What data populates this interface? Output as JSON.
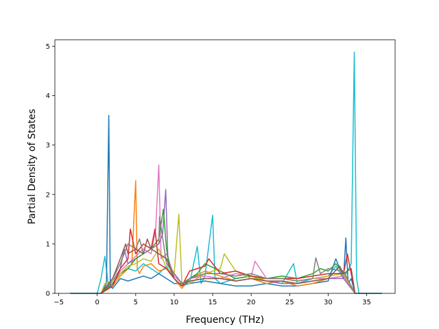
{
  "chart_data": {
    "type": "line",
    "title": "",
    "xlabel": "Frequency (THz)",
    "ylabel": "Partial Density of States",
    "xlim": [
      -5.5,
      38.7
    ],
    "ylim": [
      0,
      5.13
    ],
    "xticks": [
      -5,
      0,
      5,
      10,
      15,
      20,
      25,
      30,
      35
    ],
    "yticks": [
      0,
      1,
      2,
      3,
      4,
      5
    ],
    "grid": false,
    "legend": "none",
    "series_colors": [
      "#1f77b4",
      "#ff7f0e",
      "#2ca02c",
      "#d62728",
      "#9467bd",
      "#8c564b",
      "#e377c2",
      "#7f7f7f",
      "#bcbd22",
      "#17becf"
    ],
    "series": [
      {
        "color": "#17becf",
        "x": [
          -3.5,
          0.0,
          0.5,
          1.0,
          1.5,
          2.0,
          3.0,
          4.0,
          5.0,
          6.0,
          7.0,
          8.0,
          9.0,
          10.0,
          11.0,
          12.0,
          13.0,
          13.5,
          14.0,
          15.0,
          15.3,
          16.0,
          18.0,
          20.0,
          22.0,
          24.0,
          25.5,
          26.0,
          28.0,
          30.0,
          31.0,
          32.0,
          33.0,
          33.4,
          33.7,
          34.0,
          37.0
        ],
        "y": [
          0,
          0,
          0.3,
          0.75,
          0.1,
          0.2,
          0.4,
          0.5,
          0.45,
          0.6,
          0.5,
          0.4,
          0.55,
          0.3,
          0.15,
          0.2,
          0.95,
          0.2,
          0.35,
          1.58,
          0.3,
          0.2,
          0.3,
          0.35,
          0.25,
          0.2,
          0.6,
          0.2,
          0.3,
          0.35,
          0.55,
          0.3,
          0.6,
          4.88,
          0.3,
          0,
          0
        ]
      },
      {
        "color": "#1f77b4",
        "x": [
          -3.5,
          0.5,
          1.2,
          1.5,
          1.7,
          2.0,
          3.0,
          4.0,
          5.0,
          6.0,
          7.0,
          8.0,
          9.0,
          10.0,
          12.0,
          14.0,
          16.0,
          18.0,
          20.0,
          22.0,
          24.0,
          26.0,
          28.0,
          30.0,
          31.0,
          32.0,
          32.3,
          32.6,
          33.0,
          33.5,
          37.0
        ],
        "y": [
          0,
          0,
          0.2,
          3.6,
          0.15,
          0.1,
          0.3,
          0.25,
          0.3,
          0.35,
          0.3,
          0.4,
          0.3,
          0.2,
          0.2,
          0.25,
          0.2,
          0.15,
          0.15,
          0.2,
          0.15,
          0.15,
          0.2,
          0.25,
          0.7,
          0.3,
          1.12,
          0.2,
          0.3,
          0,
          0
        ]
      },
      {
        "color": "#ff7f0e",
        "x": [
          0.5,
          2.0,
          3.0,
          4.0,
          4.5,
          5.0,
          5.2,
          5.5,
          6.0,
          7.0,
          8.0,
          9.0,
          10.0,
          11.0,
          12.0,
          14.0,
          16.0,
          18.0,
          20.0,
          22.0,
          24.0,
          26.0,
          28.0,
          30.0,
          32.0,
          33.5
        ],
        "y": [
          0,
          0.15,
          0.35,
          0.5,
          0.6,
          2.28,
          0.5,
          0.4,
          0.55,
          0.6,
          0.45,
          0.5,
          0.3,
          0.1,
          0.3,
          0.45,
          0.35,
          0.25,
          0.3,
          0.2,
          0.25,
          0.15,
          0.2,
          0.3,
          0.35,
          0
        ]
      },
      {
        "color": "#e377c2",
        "x": [
          0.5,
          2.0,
          3.0,
          4.0,
          5.0,
          6.0,
          7.0,
          7.6,
          8.0,
          8.3,
          9.0,
          10.0,
          11.0,
          12.0,
          14.0,
          16.0,
          18.0,
          20.0,
          20.5,
          22.0,
          24.0,
          26.0,
          28.0,
          30.0,
          32.0,
          33.5
        ],
        "y": [
          0,
          0.2,
          0.45,
          0.6,
          0.75,
          0.9,
          0.8,
          1.3,
          2.6,
          0.7,
          0.8,
          0.35,
          0.2,
          0.3,
          0.35,
          0.3,
          0.4,
          0.35,
          0.65,
          0.3,
          0.3,
          0.25,
          0.3,
          0.3,
          0.35,
          0
        ]
      },
      {
        "color": "#9467bd",
        "x": [
          0.5,
          2.0,
          3.0,
          3.5,
          4.0,
          5.0,
          6.0,
          7.0,
          8.0,
          8.5,
          8.9,
          9.2,
          10.0,
          11.0,
          12.0,
          14.0,
          16.0,
          18.0,
          20.0,
          22.0,
          24.0,
          26.0,
          28.0,
          30.0,
          32.0,
          33.5
        ],
        "y": [
          0,
          0.25,
          0.5,
          0.9,
          0.6,
          0.7,
          0.8,
          0.9,
          1.0,
          1.2,
          2.1,
          0.6,
          0.4,
          0.2,
          0.25,
          0.3,
          0.3,
          0.25,
          0.3,
          0.25,
          0.2,
          0.2,
          0.25,
          0.3,
          0.3,
          0
        ]
      },
      {
        "color": "#2ca02c",
        "x": [
          0.5,
          2.0,
          3.0,
          4.0,
          5.0,
          6.0,
          7.0,
          8.0,
          8.6,
          9.0,
          9.5,
          10.0,
          11.0,
          12.0,
          13.0,
          14.0,
          16.0,
          18.0,
          20.0,
          22.0,
          24.0,
          26.0,
          28.0,
          29.0,
          30.0,
          31.0,
          32.0,
          33.5
        ],
        "y": [
          0,
          0.2,
          0.4,
          0.5,
          0.7,
          0.8,
          0.9,
          1.1,
          1.7,
          0.9,
          0.5,
          0.3,
          0.15,
          0.3,
          0.4,
          0.6,
          0.45,
          0.3,
          0.35,
          0.3,
          0.35,
          0.3,
          0.4,
          0.5,
          0.45,
          0.6,
          0.4,
          0
        ]
      },
      {
        "color": "#bcbd22",
        "x": [
          0.5,
          1.0,
          2.0,
          3.0,
          4.0,
          5.0,
          6.0,
          7.0,
          8.0,
          9.0,
          10.0,
          10.6,
          11.0,
          12.0,
          14.0,
          16.0,
          16.5,
          18.0,
          20.0,
          22.0,
          24.0,
          26.0,
          28.0,
          30.0,
          32.0,
          33.5
        ],
        "y": [
          0,
          0.2,
          0.25,
          0.4,
          0.55,
          0.6,
          0.7,
          0.65,
          0.9,
          0.5,
          0.4,
          1.6,
          0.2,
          0.2,
          0.4,
          0.5,
          0.8,
          0.45,
          0.3,
          0.3,
          0.3,
          0.25,
          0.3,
          0.35,
          0.4,
          0
        ]
      },
      {
        "color": "#d62728",
        "x": [
          0.5,
          2.0,
          3.0,
          4.0,
          4.3,
          5.0,
          6.0,
          7.0,
          7.5,
          8.0,
          9.0,
          10.0,
          11.0,
          12.0,
          13.0,
          14.0,
          14.5,
          16.0,
          18.0,
          20.0,
          22.0,
          24.0,
          26.0,
          28.0,
          30.0,
          32.0,
          32.5,
          33.5
        ],
        "y": [
          0,
          0.15,
          0.5,
          0.7,
          1.3,
          0.8,
          1.0,
          0.9,
          1.3,
          0.6,
          0.5,
          0.3,
          0.15,
          0.45,
          0.5,
          0.55,
          0.7,
          0.4,
          0.45,
          0.35,
          0.3,
          0.3,
          0.3,
          0.35,
          0.4,
          0.4,
          0.8,
          0
        ]
      },
      {
        "color": "#7f7f7f",
        "x": [
          0.5,
          2.0,
          3.0,
          4.0,
          5.0,
          5.5,
          6.0,
          7.0,
          8.0,
          8.1,
          9.0,
          10.0,
          11.0,
          12.0,
          14.0,
          16.0,
          18.0,
          20.0,
          22.0,
          24.0,
          26.0,
          28.0,
          28.4,
          29.0,
          30.0,
          32.0,
          33.5
        ],
        "y": [
          0,
          0.3,
          0.6,
          1.0,
          0.9,
          1.1,
          0.8,
          0.9,
          1.0,
          1.55,
          0.6,
          0.4,
          0.2,
          0.3,
          0.4,
          0.4,
          0.35,
          0.4,
          0.3,
          0.3,
          0.25,
          0.3,
          0.72,
          0.4,
          0.5,
          0.45,
          0
        ]
      },
      {
        "color": "#8c564b",
        "x": [
          0.5,
          2.0,
          3.0,
          3.7,
          4.0,
          5.0,
          6.0,
          6.5,
          7.0,
          8.0,
          9.0,
          10.0,
          11.0,
          12.0,
          14.0,
          16.0,
          18.0,
          20.0,
          22.0,
          24.0,
          26.0,
          28.0,
          30.0,
          31.5,
          32.0,
          33.0,
          33.5
        ],
        "y": [
          0,
          0.3,
          0.7,
          1.0,
          0.8,
          0.9,
          0.8,
          1.1,
          0.9,
          0.8,
          0.7,
          0.3,
          0.15,
          0.25,
          0.3,
          0.3,
          0.25,
          0.3,
          0.25,
          0.25,
          0.2,
          0.25,
          0.3,
          0.55,
          0.4,
          0.5,
          0
        ]
      }
    ]
  }
}
